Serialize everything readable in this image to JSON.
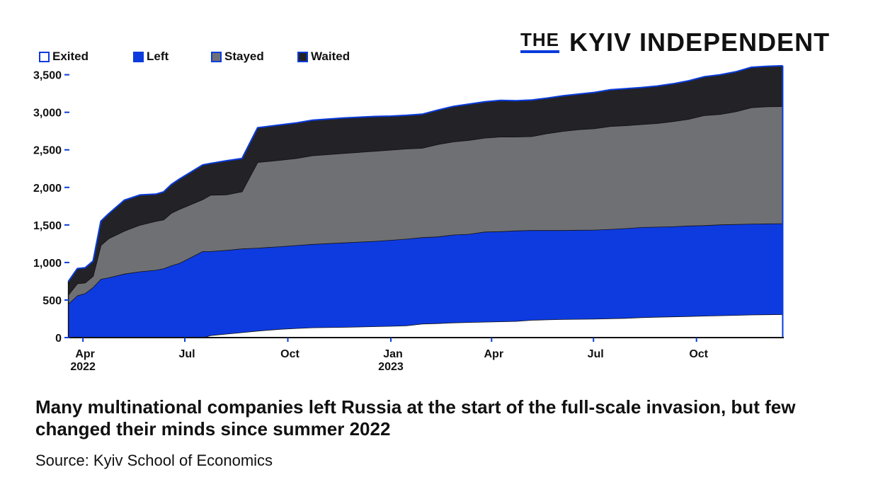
{
  "logo": {
    "prefix": "THE",
    "name": "KYIV INDEPENDENT"
  },
  "headline": "Many multinational companies left Russia at the start of the full-scale invasion, but few changed their minds since summer 2022",
  "source": "Source: Kyiv School of Economics",
  "colors": {
    "exited": "#ffffff",
    "left": "#0e3be0",
    "stayed": "#6f7074",
    "waited": "#232226",
    "outline": "#0a3cdc"
  },
  "chart_data": {
    "type": "area",
    "stacked": true,
    "legend_position": "top-left",
    "grid": false,
    "ylim": [
      0,
      3600
    ],
    "yticks": [
      {
        "value": 0,
        "label": "0"
      },
      {
        "value": 500,
        "label": "500"
      },
      {
        "value": 1000,
        "label": "1,000"
      },
      {
        "value": 1500,
        "label": "1,500"
      },
      {
        "value": 2000,
        "label": "2,000"
      },
      {
        "value": 2500,
        "label": "2,500"
      },
      {
        "value": 3000,
        "label": "3,000"
      },
      {
        "value": 3500,
        "label": "3,500"
      }
    ],
    "xlim": [
      "2022-03-18",
      "2023-12-18"
    ],
    "xticks": [
      {
        "date": "2022-04-01",
        "label": "Apr",
        "sub": "2022"
      },
      {
        "date": "2022-07-01",
        "label": "Jul",
        "sub": ""
      },
      {
        "date": "2022-10-01",
        "label": "Oct",
        "sub": ""
      },
      {
        "date": "2023-01-01",
        "label": "Jan",
        "sub": "2023"
      },
      {
        "date": "2023-04-01",
        "label": "Apr",
        "sub": ""
      },
      {
        "date": "2023-07-01",
        "label": "Jul",
        "sub": ""
      },
      {
        "date": "2023-10-01",
        "label": "Oct",
        "sub": ""
      }
    ],
    "x": [
      "2022-03-19",
      "2022-03-27",
      "2022-04-03",
      "2022-04-10",
      "2022-04-17",
      "2022-04-24",
      "2022-05-08",
      "2022-05-22",
      "2022-06-05",
      "2022-06-12",
      "2022-06-19",
      "2022-06-26",
      "2022-07-17",
      "2022-07-24",
      "2022-08-07",
      "2022-08-21",
      "2022-09-04",
      "2022-09-25",
      "2022-10-09",
      "2022-10-23",
      "2022-11-20",
      "2022-12-18",
      "2023-01-01",
      "2023-01-15",
      "2023-01-29",
      "2023-02-12",
      "2023-02-26",
      "2023-03-12",
      "2023-03-26",
      "2023-04-09",
      "2023-04-23",
      "2023-05-07",
      "2023-05-21",
      "2023-06-04",
      "2023-06-18",
      "2023-07-02",
      "2023-07-16",
      "2023-07-30",
      "2023-08-13",
      "2023-08-27",
      "2023-09-10",
      "2023-09-24",
      "2023-10-08",
      "2023-10-22",
      "2023-11-05",
      "2023-11-19",
      "2023-12-03",
      "2023-12-17"
    ],
    "series": [
      {
        "name": "Exited",
        "values": [
          0,
          0,
          0,
          0,
          0,
          0,
          0,
          0,
          0,
          0,
          0,
          0,
          0,
          30,
          50,
          70,
          90,
          115,
          125,
          135,
          140,
          150,
          155,
          160,
          185,
          190,
          200,
          205,
          210,
          215,
          220,
          235,
          240,
          245,
          248,
          250,
          255,
          260,
          270,
          275,
          280,
          285,
          290,
          295,
          300,
          305,
          308,
          310
        ]
      },
      {
        "name": "Left",
        "values": [
          450,
          560,
          590,
          670,
          780,
          800,
          850,
          880,
          900,
          920,
          960,
          990,
          1150,
          1120,
          1115,
          1115,
          1105,
          1100,
          1105,
          1110,
          1125,
          1135,
          1145,
          1155,
          1150,
          1155,
          1170,
          1175,
          1200,
          1200,
          1205,
          1195,
          1190,
          1185,
          1185,
          1185,
          1190,
          1195,
          1200,
          1200,
          1200,
          1205,
          1205,
          1210,
          1210,
          1210,
          1210,
          1210
        ]
      },
      {
        "name": "Stayed",
        "values": [
          120,
          160,
          140,
          150,
          450,
          520,
          570,
          620,
          650,
          650,
          700,
          720,
          690,
          750,
          740,
          760,
          1140,
          1150,
          1160,
          1180,
          1190,
          1200,
          1200,
          1200,
          1190,
          1230,
          1240,
          1250,
          1250,
          1260,
          1250,
          1250,
          1290,
          1320,
          1340,
          1350,
          1370,
          1370,
          1370,
          1380,
          1400,
          1420,
          1465,
          1470,
          1500,
          1550,
          1560,
          1560
        ]
      },
      {
        "name": "Waited",
        "values": [
          180,
          200,
          200,
          200,
          320,
          330,
          410,
          400,
          360,
          370,
          380,
          400,
          460,
          420,
          450,
          440,
          460,
          470,
          470,
          470,
          470,
          460,
          450,
          445,
          450,
          455,
          470,
          480,
          480,
          485,
          480,
          485,
          470,
          470,
          470,
          480,
          485,
          490,
          490,
          495,
          500,
          510,
          515,
          525,
          530,
          535,
          535,
          540
        ]
      }
    ]
  }
}
